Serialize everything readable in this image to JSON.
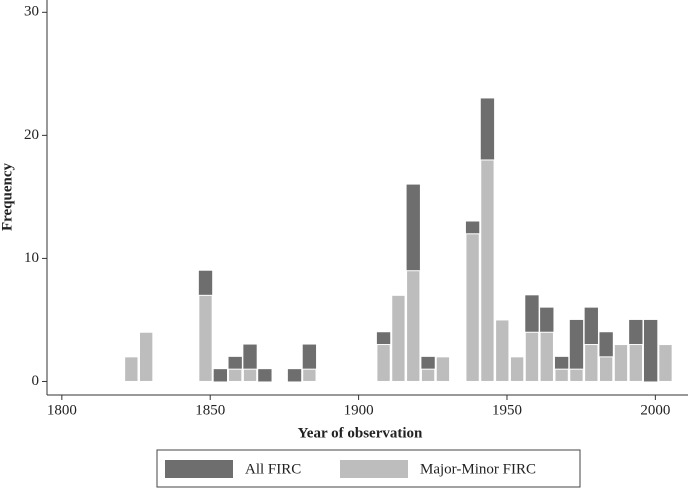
{
  "chart_data": {
    "type": "histogram",
    "x_label": "Year of observation",
    "y_label": "Frequency",
    "bins": [
      1821,
      1826,
      1831,
      1836,
      1841,
      1846,
      1851,
      1856,
      1861,
      1866,
      1871,
      1876,
      1881,
      1886,
      1891,
      1896,
      1901,
      1906,
      1911,
      1916,
      1921,
      1926,
      1931,
      1936,
      1941,
      1946,
      1951,
      1956,
      1961,
      1966,
      1971,
      1976,
      1981,
      1986,
      1991,
      1996,
      2001,
      2006
    ],
    "series": [
      {
        "name": "All FIRC",
        "color": "#6e6e6e",
        "values": [
          2,
          4,
          0,
          0,
          0,
          9,
          1,
          2,
          3,
          1,
          0,
          1,
          3,
          0,
          0,
          0,
          0,
          4,
          7,
          16,
          2,
          2,
          0,
          13,
          23,
          5,
          2,
          7,
          6,
          2,
          5,
          6,
          4,
          3,
          5,
          5,
          3
        ]
      },
      {
        "name": "Major-Minor FIRC",
        "color": "#bdbdbd",
        "values": [
          2,
          4,
          0,
          0,
          0,
          7,
          0,
          1,
          1,
          0,
          0,
          0,
          1,
          0,
          0,
          0,
          0,
          3,
          7,
          9,
          1,
          2,
          0,
          12,
          18,
          5,
          2,
          4,
          4,
          1,
          1,
          3,
          2,
          3,
          3,
          0,
          3
        ]
      }
    ],
    "xlim": [
      1795,
      2011
    ],
    "ylim": [
      -1.1,
      31
    ],
    "xticks": [
      1800,
      1850,
      1900,
      1950,
      2000
    ],
    "yticks": [
      0,
      10,
      20,
      30
    ]
  }
}
